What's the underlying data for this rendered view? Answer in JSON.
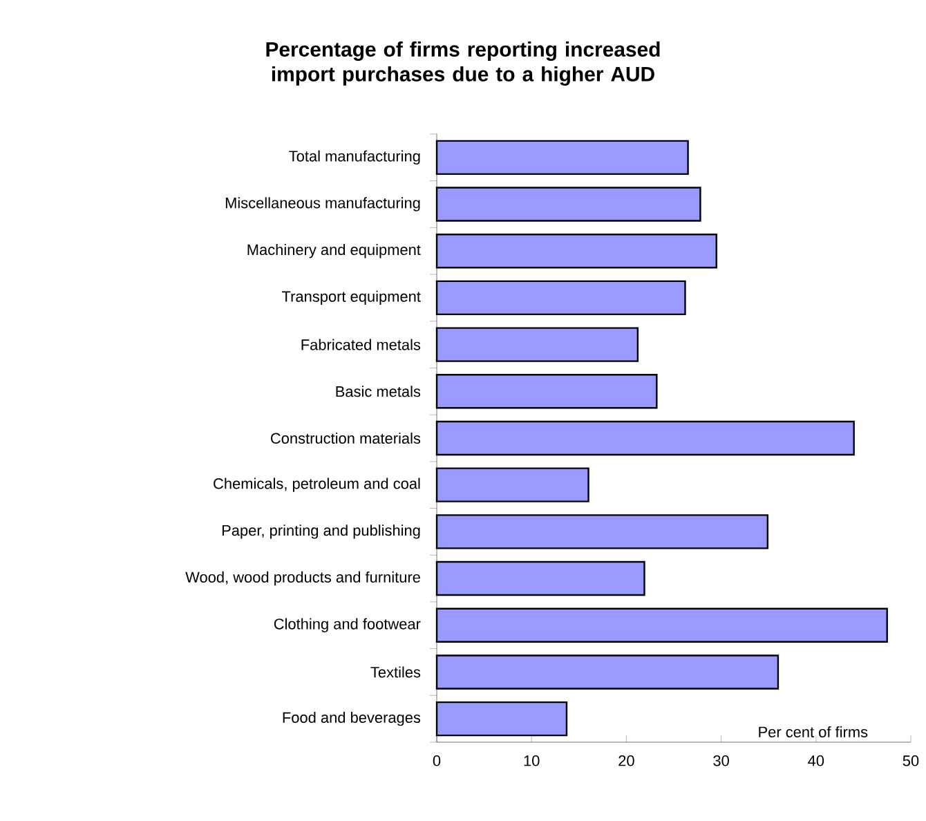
{
  "chart_data": {
    "type": "bar",
    "orientation": "horizontal",
    "title": "Percentage of firms reporting increased import purchases due to a higher AUD",
    "xlabel": "Per cent of firms",
    "categories": [
      "Total manufacturing",
      "Miscellaneous manufacturing",
      "Machinery and equipment",
      "Transport equipment",
      "Fabricated metals",
      "Basic metals",
      "Construction materials",
      "Chemicals, petroleum and coal",
      "Paper, printing and publishing",
      "Wood, wood products and furniture",
      "Clothing and footwear",
      "Textiles",
      "Food and beverages"
    ],
    "values": [
      26.5,
      27.8,
      29.5,
      26.2,
      21.2,
      23.2,
      44.0,
      16.0,
      34.9,
      21.9,
      47.5,
      36.0,
      13.7
    ],
    "color": "#9999ff",
    "xlim": [
      0,
      50
    ],
    "xticks": [
      0,
      10,
      20,
      30,
      40,
      50
    ]
  }
}
